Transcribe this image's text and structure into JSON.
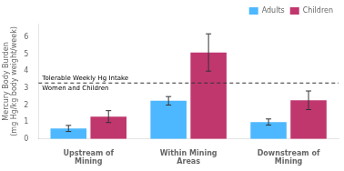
{
  "chart_data": {
    "type": "bar",
    "categories": [
      "Upstream of\nMining",
      "Within Mining\nAreas",
      "Downstream of\nMining"
    ],
    "series": [
      {
        "name": "Adults",
        "color": "#4db8ff",
        "values": [
          0.62,
          2.25,
          1.0
        ],
        "errors": [
          0.18,
          0.25,
          0.18
        ]
      },
      {
        "name": "Children",
        "color": "#c0376e",
        "values": [
          1.32,
          5.1,
          2.28
        ],
        "errors": [
          0.35,
          1.1,
          0.55
        ]
      }
    ],
    "ylabel": "Mercury Body Burden\n(mg Hg/kg body weight/week)",
    "ylim": [
      0,
      6.8
    ],
    "yticks": [
      0,
      1,
      2,
      3,
      4,
      5,
      6
    ],
    "reference_line": {
      "y": 3.3,
      "color": "#333333",
      "line_style": "dashed",
      "labels": [
        "Tolerable Weekly Hg Intake",
        "Women and Children"
      ]
    },
    "legend": "upper right",
    "grid": false
  }
}
